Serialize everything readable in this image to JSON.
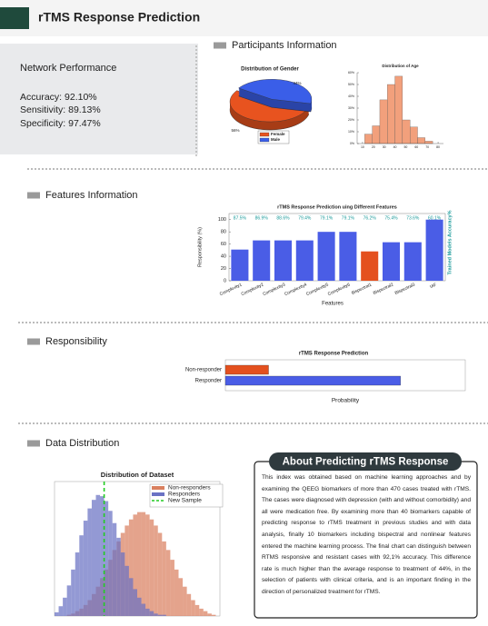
{
  "header": {
    "title": "rTMS Response Prediction"
  },
  "performance": {
    "title": "Network Performance",
    "lines": [
      "Accuracy: 92.10%",
      "Sensitivity: 89.13%",
      "Specificity: 97.47%"
    ]
  },
  "sections": [
    "Participants Information",
    "Features Information",
    "Responsibility",
    "Data Distribution"
  ],
  "chart_data": [
    {
      "type": "pie",
      "title": "Distribution of Gender",
      "categories": [
        "Female",
        "Male"
      ],
      "values": [
        56,
        44
      ],
      "value_labels": [
        "56%",
        "44%"
      ],
      "colors": [
        "#e8531f",
        "#3a5ee8"
      ]
    },
    {
      "type": "histogram",
      "title": "Distribution of Age",
      "bins": [
        12,
        19,
        26,
        33,
        40,
        47,
        54,
        61,
        68,
        75
      ],
      "values": [
        8,
        15,
        37,
        50,
        57,
        20,
        14,
        5,
        2
      ],
      "color": "#f2a07c",
      "xlim": [
        5,
        85
      ],
      "xticks": [
        10,
        20,
        30,
        40,
        50,
        60,
        70,
        80
      ],
      "ylim": [
        0,
        60
      ],
      "yticks": [
        {
          "value": 0,
          "label": "0%"
        },
        {
          "value": 10,
          "label": "10%"
        },
        {
          "value": 20,
          "label": "20%"
        },
        {
          "value": 30,
          "label": "30%"
        },
        {
          "value": 40,
          "label": "40%"
        },
        {
          "value": 50,
          "label": "50%"
        },
        {
          "value": 60,
          "label": "60%"
        }
      ]
    },
    {
      "type": "bar",
      "title": "rTMS Response Prediction uing Different Features",
      "categories": [
        "Complexity1",
        "Complexity2",
        "Complexity3",
        "Complexity4",
        "Complexity5",
        "Complexity6",
        "Bispectral1",
        "Bispectral2",
        "Bispectral3",
        "IAF"
      ],
      "values": [
        51,
        66,
        66,
        66,
        80,
        80,
        48,
        63,
        63,
        100
      ],
      "colors": [
        "#4a5de6",
        "#4a5de6",
        "#4a5de6",
        "#4a5de6",
        "#4a5de6",
        "#4a5de6",
        "#e4501e",
        "#4a5de6",
        "#4a5de6",
        "#4a5de6"
      ],
      "accuracy_labels": [
        "87.5%",
        "86.9%",
        "88.6%",
        "79.4%",
        "79.1%",
        "79.1%",
        "76.2%",
        "75.4%",
        "73.6%",
        "60.1%"
      ],
      "xlabel": "Features",
      "ylabel": "Responsibility (%)",
      "y2label": "Trained Models Accuracy%",
      "ylim": [
        0,
        110
      ],
      "yticks": [
        0,
        20,
        40,
        60,
        80,
        100
      ]
    },
    {
      "type": "hbar",
      "title": "rTMS Response Prediction",
      "categories": [
        "Non-responder",
        "Responder"
      ],
      "values": [
        0.18,
        0.73
      ],
      "colors": [
        "#e4501e",
        "#4a5de6"
      ],
      "xlabel": "Probability",
      "xlim": [
        0,
        1
      ]
    },
    {
      "type": "histogram",
      "title": "Distribution of Dataset",
      "bins": [
        0,
        1,
        2,
        3,
        4,
        5,
        6,
        7,
        8,
        9,
        10,
        11,
        12,
        13,
        14,
        15,
        16,
        17,
        18,
        19,
        20,
        21,
        22,
        23,
        24,
        25,
        26,
        27,
        28,
        29,
        30,
        31,
        32,
        33,
        34,
        35,
        36,
        37,
        38,
        39,
        40
      ],
      "series": [
        {
          "name": "Non-responders",
          "color": "#d9805f",
          "values": [
            0,
            0,
            0,
            1,
            2,
            4,
            6,
            9,
            13,
            18,
            24,
            31,
            38,
            46,
            54,
            61,
            68,
            74,
            79,
            83,
            85,
            85,
            83,
            79,
            74,
            68,
            61,
            54,
            46,
            38,
            31,
            24,
            18,
            13,
            9,
            6,
            4,
            2,
            1,
            0
          ]
        },
        {
          "name": "Responders",
          "color": "#6a72c4",
          "values": [
            3,
            8,
            15,
            25,
            38,
            52,
            66,
            78,
            88,
            95,
            99,
            98,
            94,
            86,
            76,
            64,
            52,
            41,
            31,
            22,
            15,
            10,
            6,
            4,
            2,
            1,
            1,
            0,
            0,
            0,
            0,
            0,
            0,
            0,
            0,
            0,
            0,
            0,
            0,
            0
          ]
        }
      ],
      "markers": [
        {
          "name": "New Sample",
          "x": 12,
          "color": "#22cc22"
        }
      ],
      "xlim": [
        0,
        40
      ],
      "ylim": [
        0,
        110
      ]
    }
  ],
  "about": {
    "title": "About Predicting rTMS Response",
    "text": "This index was obtained based on machine learning approaches and by examining the QEEG biomarkers of more than 470 cases treated with rTMS. The cases were diagnosed with depression (with and without comorbidity) and all were medication free. By examining more than 40 biomarkers capable of predicting response to rTMS treatment in previous studies and with data analysis, finally 10 biomarkers including bispectral and nonlinear features entered the machine learning process. The final chart can distinguish between RTMS responsive and resistant cases with 92,1% accuracy. This difference rate is much higher than the average response to treatment of 44%, in the selection of patients with clinical criteria, and is an important finding in the direction of personalized treatment for rTMS."
  }
}
